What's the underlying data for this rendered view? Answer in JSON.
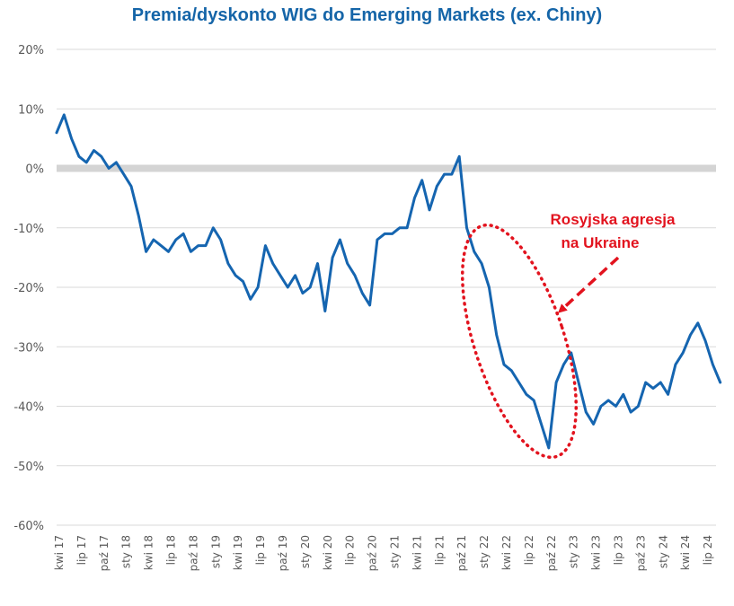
{
  "chart_data": {
    "type": "line",
    "title": "Premia/dyskonto WIG do Emerging Markets (ex. Chiny)",
    "xlabel": "",
    "ylabel": "",
    "ylim": [
      -60,
      20
    ],
    "ytick_values": [
      20,
      10,
      0,
      -10,
      -20,
      -30,
      -40,
      -50,
      -60
    ],
    "ytick_labels": [
      "20%",
      "10%",
      "0%",
      "-10%",
      "-20%",
      "-30%",
      "-40%",
      "-50%",
      "-60%"
    ],
    "xlim": [
      "2017-04",
      "2024-09"
    ],
    "xtick_labels": [
      "kwi 17",
      "lip 17",
      "paź 17",
      "sty 18",
      "kwi 18",
      "lip 18",
      "paź 18",
      "sty 19",
      "kwi 19",
      "lip 19",
      "paź 19",
      "sty 20",
      "kwi 20",
      "lip 20",
      "paź 20",
      "sty 21",
      "kwi 21",
      "lip 21",
      "paź 21",
      "sty 22",
      "kwi 22",
      "lip 22",
      "paź 22",
      "sty 23",
      "kwi 23",
      "lip 23",
      "paź 23",
      "sty 24",
      "kwi 24",
      "lip 24"
    ],
    "grid": true,
    "legend": "none",
    "zero_band": true,
    "series": [
      {
        "name": "",
        "color": "#1565b0",
        "x": [
          "2017-04",
          "2017-05",
          "2017-06",
          "2017-07",
          "2017-08",
          "2017-09",
          "2017-10",
          "2017-11",
          "2017-12",
          "2018-01",
          "2018-02",
          "2018-03",
          "2018-04",
          "2018-05",
          "2018-06",
          "2018-07",
          "2018-08",
          "2018-09",
          "2018-10",
          "2018-11",
          "2018-12",
          "2019-01",
          "2019-02",
          "2019-03",
          "2019-04",
          "2019-05",
          "2019-06",
          "2019-07",
          "2019-08",
          "2019-09",
          "2019-10",
          "2019-11",
          "2019-12",
          "2020-01",
          "2020-02",
          "2020-03",
          "2020-04",
          "2020-05",
          "2020-06",
          "2020-07",
          "2020-08",
          "2020-09",
          "2020-10",
          "2020-11",
          "2020-12",
          "2021-01",
          "2021-02",
          "2021-03",
          "2021-04",
          "2021-05",
          "2021-06",
          "2021-07",
          "2021-08",
          "2021-09",
          "2021-10",
          "2021-11",
          "2021-12",
          "2022-01",
          "2022-02",
          "2022-03",
          "2022-04",
          "2022-05",
          "2022-06",
          "2022-07",
          "2022-08",
          "2022-09",
          "2022-10",
          "2022-11",
          "2022-12",
          "2023-01",
          "2023-02",
          "2023-03",
          "2023-04",
          "2023-05",
          "2023-06",
          "2023-07",
          "2023-08",
          "2023-09",
          "2023-10",
          "2023-11",
          "2023-12",
          "2024-01",
          "2024-02",
          "2024-03",
          "2024-04",
          "2024-05",
          "2024-06",
          "2024-07",
          "2024-08",
          "2024-09"
        ],
        "values": [
          6,
          9,
          5,
          2,
          1,
          3,
          2,
          0,
          1,
          -1,
          -3,
          -8,
          -14,
          -12,
          -13,
          -14,
          -12,
          -11,
          -14,
          -13,
          -13,
          -10,
          -12,
          -16,
          -18,
          -19,
          -22,
          -20,
          -13,
          -16,
          -18,
          -20,
          -18,
          -21,
          -20,
          -16,
          -24,
          -15,
          -12,
          -16,
          -18,
          -21,
          -23,
          -12,
          -11,
          -11,
          -10,
          -10,
          -5,
          -2,
          -7,
          -3,
          -1,
          -1,
          2,
          -10,
          -14,
          -16,
          -20,
          -28,
          -33,
          -34,
          -36,
          -38,
          -39,
          -43,
          -47,
          -36,
          -33,
          -31,
          -36,
          -41,
          -43,
          -40,
          -39,
          -40,
          -38,
          -41,
          -40,
          -36,
          -37,
          -36,
          -38,
          -33,
          -31,
          -28,
          -26,
          -29,
          -33,
          -36
        ]
      }
    ],
    "annotations": [
      {
        "text_line1": "Rosyjska agresja",
        "text_line2": "na Ukraine",
        "color": "#e2131e",
        "target_x": "2022-09",
        "target_y": -24
      }
    ]
  }
}
